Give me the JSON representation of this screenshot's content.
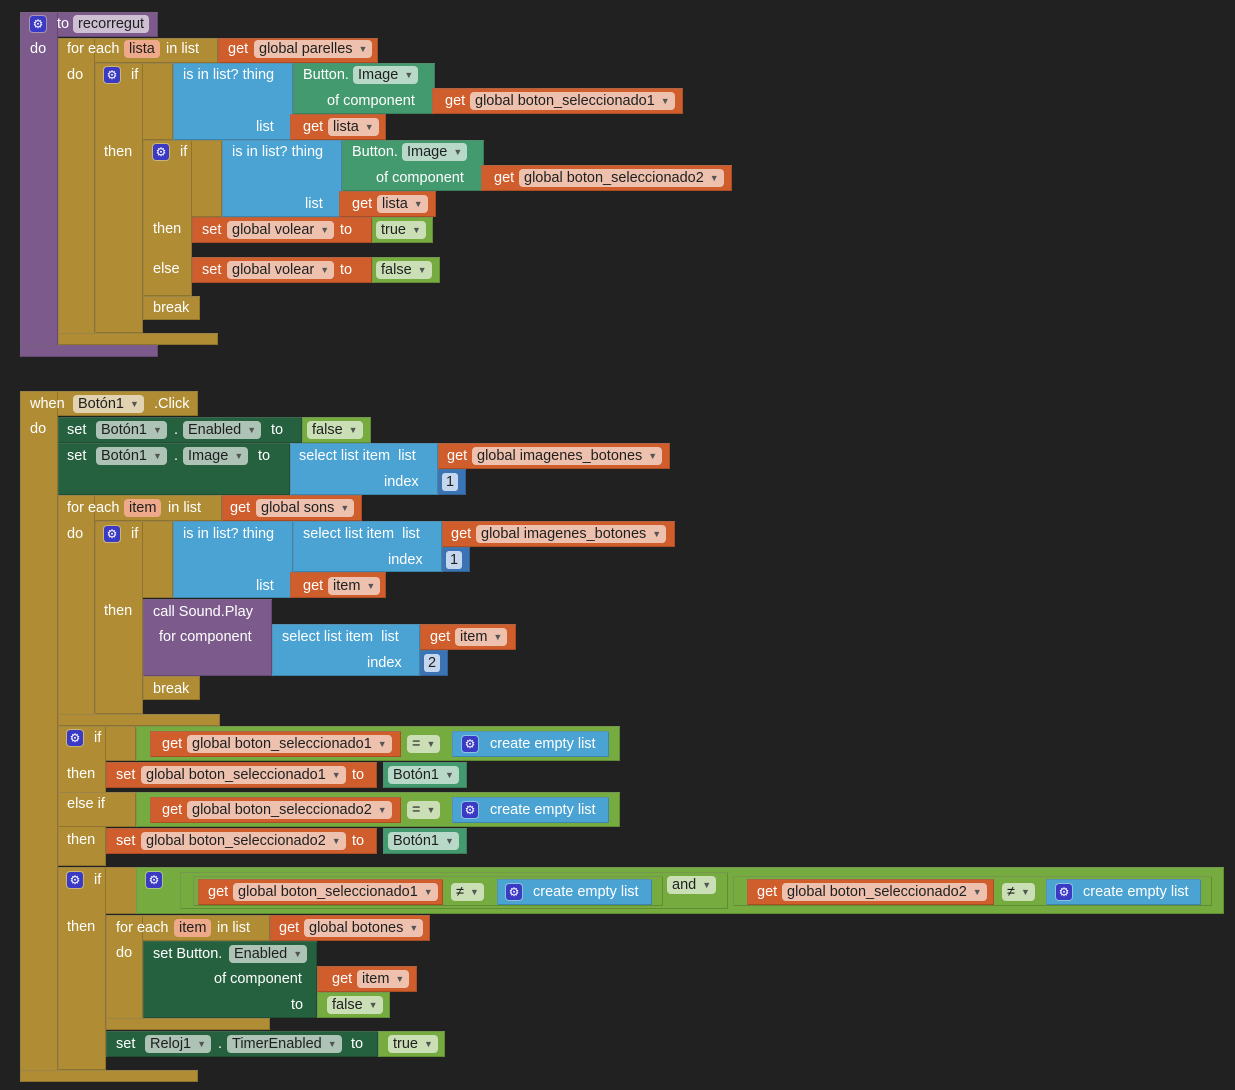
{
  "colors": {
    "background": "#212121",
    "procedure": "#7c5a8b",
    "control": "#b08d35",
    "variable": "#d05d2c",
    "list": "#4aa3d3",
    "component_getter": "#449a6f",
    "component_setter": "#26613f",
    "logic": "#76ab3f",
    "math": "#3b74b5"
  },
  "icons": {
    "mutator": "gear-icon",
    "dropdown": "triangle-down"
  },
  "procedure": {
    "to": "to",
    "name": "recorregut",
    "do": "do",
    "foreach": {
      "for_each": "for each",
      "var": "lista",
      "in_list": "in list",
      "get": "get",
      "list_var": "global parelles",
      "do": "do"
    },
    "if1": {
      "if": "if",
      "is_in_list": "is in list? thing",
      "button": "Button.",
      "prop": "Image",
      "of_component": "of component",
      "get": "get",
      "comp_var": "global boton_seleccionado1",
      "list": "list",
      "list_get": "get",
      "list_var": "lista",
      "then": "then"
    },
    "if2": {
      "if": "if",
      "is_in_list": "is in list? thing",
      "button": "Button.",
      "prop": "Image",
      "of_component": "of component",
      "get": "get",
      "comp_var": "global boton_seleccionado2",
      "list": "list",
      "list_get": "get",
      "list_var": "lista",
      "then": "then",
      "set1": "set",
      "var1": "global volear",
      "to1": "to",
      "val1": "true",
      "else": "else",
      "set2": "set",
      "var2": "global volear",
      "to2": "to",
      "val2": "false"
    },
    "break": "break"
  },
  "event": {
    "when": "when",
    "component": "Botón1",
    "event": ".Click",
    "do": "do",
    "set_enabled": {
      "set": "set",
      "component": "Botón1",
      "dot": ".",
      "prop": "Enabled",
      "to": "to",
      "value": "false"
    },
    "set_image": {
      "set": "set",
      "component": "Botón1",
      "dot": ".",
      "prop": "Image",
      "to": "to",
      "select": "select list item  list",
      "get": "get",
      "var": "global imagenes_botones",
      "index": "index",
      "index_val": "1"
    },
    "foreach": {
      "for_each": "for each",
      "var": "item",
      "in_list": "in list",
      "get": "get",
      "list_var": "global sons",
      "do": "do",
      "if": "if",
      "is_in_list": "is in list? thing",
      "select": "select list item  list",
      "get2": "get",
      "var2": "global imagenes_botones",
      "index": "index",
      "index_val": "1",
      "list": "list",
      "list_get": "get",
      "list_var2": "item",
      "then": "then",
      "call": "call Sound.Play",
      "for_component": "for component",
      "select3": "select list item  list",
      "get3": "get",
      "var3": "item",
      "index3": "index",
      "index_val3": "2",
      "break": "break"
    },
    "ifelse": {
      "if": "if",
      "get1": "get",
      "var1": "global boton_seleccionado1",
      "op1": "=",
      "empty1": "create empty list",
      "then1": "then",
      "set1": "set",
      "setvar1": "global boton_seleccionado1",
      "to1": "to",
      "comp1": "Botón1",
      "elseif": "else if",
      "get2": "get",
      "var2": "global boton_seleccionado2",
      "op2": "=",
      "empty2": "create empty list",
      "then2": "then",
      "set2": "set",
      "setvar2": "global boton_seleccionado2",
      "to2": "to",
      "comp2": "Botón1"
    },
    "ifand": {
      "if": "if",
      "get1": "get",
      "var1": "global boton_seleccionado1",
      "op1": "≠",
      "empty1": "create empty list",
      "and": "and",
      "get2": "get",
      "var2": "global boton_seleccionado2",
      "op2": "≠",
      "empty2": "create empty list",
      "then": "then",
      "for_each": "for each",
      "var": "item",
      "in_list": "in list",
      "get": "get",
      "list_var": "global botones",
      "do": "do",
      "set_button": "set Button.",
      "prop": "Enabled",
      "of_component": "of component",
      "get_item": "get",
      "item": "item",
      "to": "to",
      "value": "false",
      "set": "set",
      "timer": "Reloj1",
      "dot": ".",
      "timer_prop": "TimerEnabled",
      "timer_to": "to",
      "timer_value": "true"
    }
  }
}
